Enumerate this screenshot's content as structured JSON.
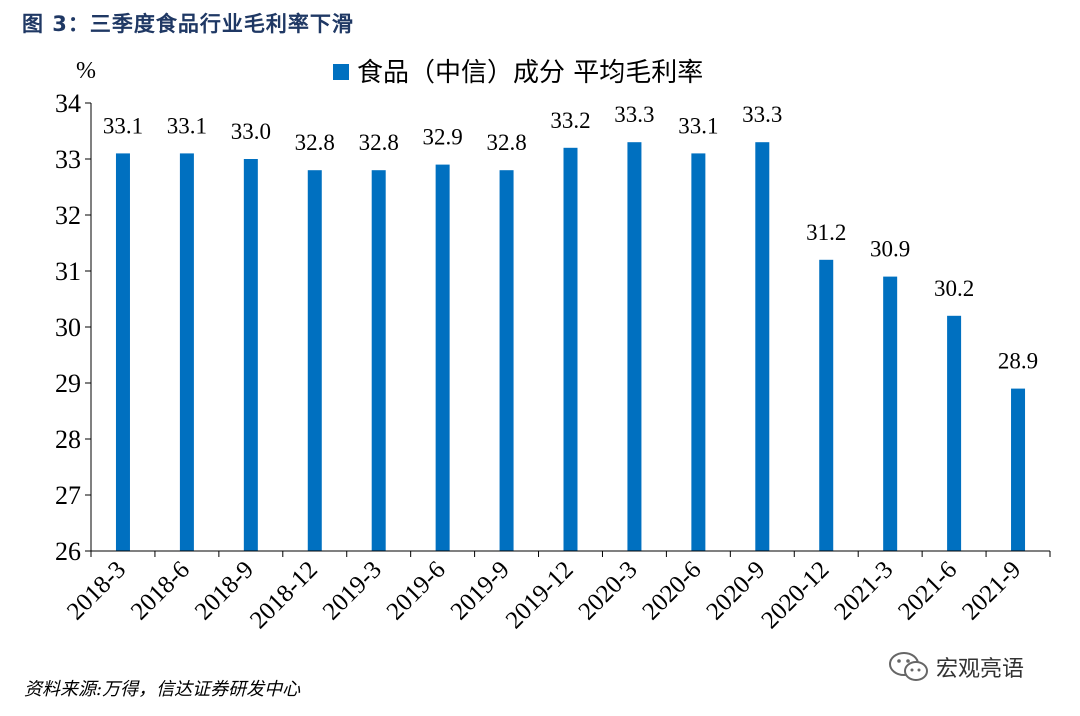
{
  "figure_title": "图 3：三季度食品行业毛利率下滑",
  "source_note": "资料来源:万得，信达证券研发中心",
  "watermark_text": "宏观亮语",
  "colors": {
    "bar": "#0070c0",
    "title": "#1f3864"
  },
  "chart_data": {
    "type": "bar",
    "unit": "%",
    "categories": [
      "2018-3",
      "2018-6",
      "2018-9",
      "2018-12",
      "2019-3",
      "2019-6",
      "2019-9",
      "2019-12",
      "2020-3",
      "2020-6",
      "2020-9",
      "2020-12",
      "2021-3",
      "2021-6",
      "2021-9"
    ],
    "series": [
      {
        "name": "食品（中信）成分 平均毛利率",
        "values": [
          33.1,
          33.1,
          33.0,
          32.8,
          32.8,
          32.9,
          32.8,
          33.2,
          33.3,
          33.1,
          33.3,
          31.2,
          30.9,
          30.2,
          28.9
        ]
      }
    ],
    "yticks": [
      26,
      27,
      28,
      29,
      30,
      31,
      32,
      33,
      34
    ],
    "ylim": [
      26,
      34
    ],
    "legend_position": "top",
    "grid": false
  }
}
